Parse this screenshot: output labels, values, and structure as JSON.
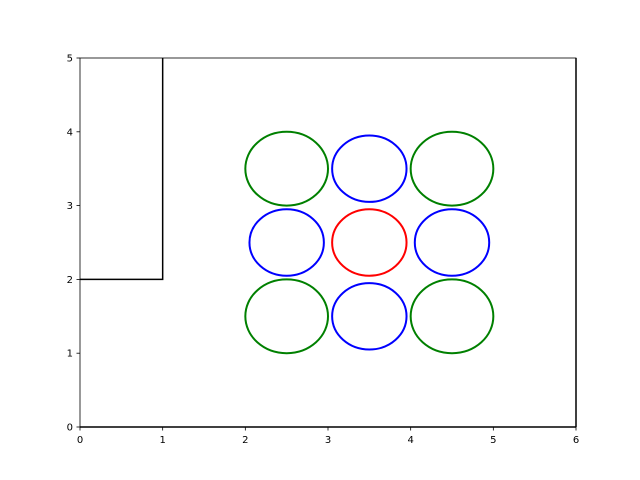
{
  "chart_data": {
    "type": "scatter",
    "title": "",
    "xlabel": "",
    "ylabel": "",
    "xlim": [
      0,
      6
    ],
    "ylim": [
      0,
      5
    ],
    "grid": false,
    "x_ticks": [
      "0",
      "1",
      "2",
      "3",
      "4",
      "5",
      "6"
    ],
    "y_ticks": [
      "0",
      "1",
      "2",
      "3",
      "4",
      "5"
    ],
    "lines": [
      {
        "color": "#000000",
        "points": [
          [
            0,
            2
          ],
          [
            1,
            2
          ],
          [
            1,
            5
          ]
        ]
      },
      {
        "color": "#000000",
        "points": [
          [
            0,
            0
          ],
          [
            6,
            0
          ]
        ]
      },
      {
        "color": "#000000",
        "points": [
          [
            6,
            0
          ],
          [
            6,
            5
          ]
        ]
      }
    ],
    "circles": [
      {
        "cx": 2.5,
        "cy": 3.5,
        "r": 0.5,
        "color": "#008000"
      },
      {
        "cx": 3.5,
        "cy": 3.5,
        "r": 0.45,
        "color": "#0000ff"
      },
      {
        "cx": 4.5,
        "cy": 3.5,
        "r": 0.5,
        "color": "#008000"
      },
      {
        "cx": 2.5,
        "cy": 2.5,
        "r": 0.45,
        "color": "#0000ff"
      },
      {
        "cx": 3.5,
        "cy": 2.5,
        "r": 0.45,
        "color": "#ff0000"
      },
      {
        "cx": 4.5,
        "cy": 2.5,
        "r": 0.45,
        "color": "#0000ff"
      },
      {
        "cx": 2.5,
        "cy": 1.5,
        "r": 0.5,
        "color": "#008000"
      },
      {
        "cx": 3.5,
        "cy": 1.5,
        "r": 0.45,
        "color": "#0000ff"
      },
      {
        "cx": 4.5,
        "cy": 1.5,
        "r": 0.5,
        "color": "#008000"
      }
    ]
  }
}
